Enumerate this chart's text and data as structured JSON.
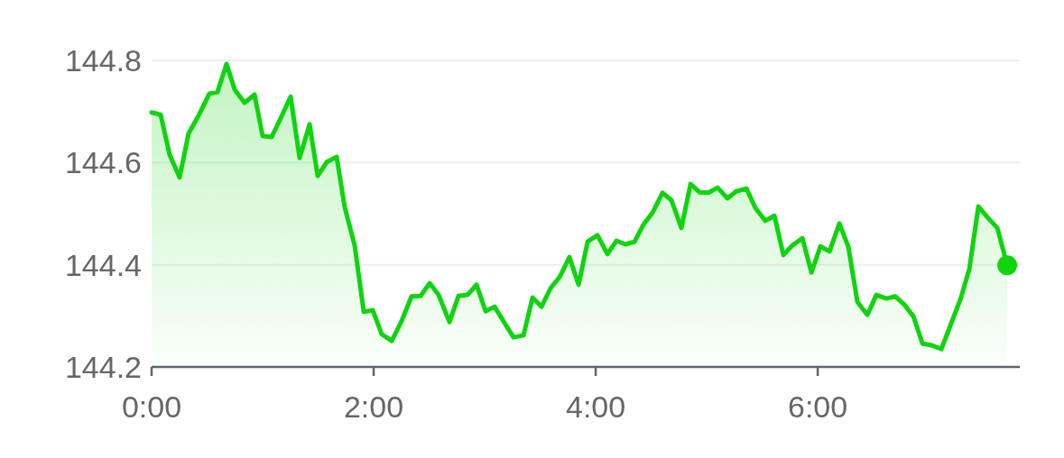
{
  "chart_data": {
    "type": "area",
    "x": [
      0,
      0.081,
      0.163,
      0.252,
      0.333,
      0.423,
      0.52,
      0.593,
      0.675,
      0.748,
      0.837,
      0.927,
      1.0,
      1.081,
      1.163,
      1.252,
      1.333,
      1.423,
      1.496,
      1.577,
      1.667,
      1.74,
      1.829,
      1.911,
      1.992,
      2.073,
      2.163,
      2.252,
      2.341,
      2.423,
      2.504,
      2.585,
      2.683,
      2.764,
      2.846,
      2.927,
      3.008,
      3.089,
      3.179,
      3.26,
      3.35,
      3.431,
      3.512,
      3.593,
      3.675,
      3.764,
      3.846,
      3.927,
      4.016,
      4.106,
      4.187,
      4.268,
      4.35,
      4.431,
      4.512,
      4.602,
      4.683,
      4.772,
      4.854,
      4.935,
      5.016,
      5.098,
      5.187,
      5.268,
      5.358,
      5.439,
      5.528,
      5.61,
      5.691,
      5.772,
      5.862,
      5.943,
      6.024,
      6.106,
      6.195,
      6.276,
      6.358,
      6.447,
      6.528,
      6.618,
      6.699,
      6.78,
      6.862,
      6.943,
      7.033,
      7.114,
      7.203,
      7.285,
      7.366,
      7.447,
      7.537,
      7.618,
      7.707
    ],
    "series": [
      {
        "color": "#0fd40f",
        "values": [
          144.698,
          144.694,
          144.615,
          144.571,
          144.657,
          144.692,
          144.735,
          144.738,
          144.793,
          144.743,
          144.717,
          144.733,
          144.652,
          144.65,
          144.687,
          144.729,
          144.609,
          144.675,
          144.574,
          144.601,
          144.611,
          144.512,
          144.438,
          144.308,
          144.311,
          144.264,
          144.251,
          144.29,
          144.338,
          144.339,
          144.364,
          144.341,
          144.288,
          144.339,
          144.341,
          144.361,
          144.309,
          144.318,
          144.286,
          144.258,
          144.262,
          144.336,
          144.318,
          144.354,
          144.376,
          144.415,
          144.361,
          144.445,
          144.458,
          144.421,
          144.447,
          144.44,
          144.445,
          144.479,
          144.502,
          144.541,
          144.526,
          144.472,
          144.558,
          144.542,
          144.541,
          144.551,
          144.53,
          144.544,
          144.549,
          144.511,
          144.486,
          144.496,
          144.419,
          144.438,
          144.452,
          144.385,
          144.436,
          144.426,
          144.481,
          144.435,
          144.327,
          144.302,
          144.341,
          144.334,
          144.338,
          144.322,
          144.299,
          144.246,
          144.242,
          144.235,
          144.286,
          144.332,
          144.392,
          144.514,
          144.491,
          144.472,
          144.399
        ]
      }
    ],
    "xlim": [
      0,
      7.82
    ],
    "ylim": [
      144.2,
      144.8
    ],
    "xticks": [
      {
        "value": 0,
        "label": "0:00"
      },
      {
        "value": 2,
        "label": "2:00"
      },
      {
        "value": 4,
        "label": "4:00"
      },
      {
        "value": 6,
        "label": "6:00"
      }
    ],
    "yticks": [
      144.2,
      144.4,
      144.6,
      144.8
    ],
    "grid": "y"
  }
}
